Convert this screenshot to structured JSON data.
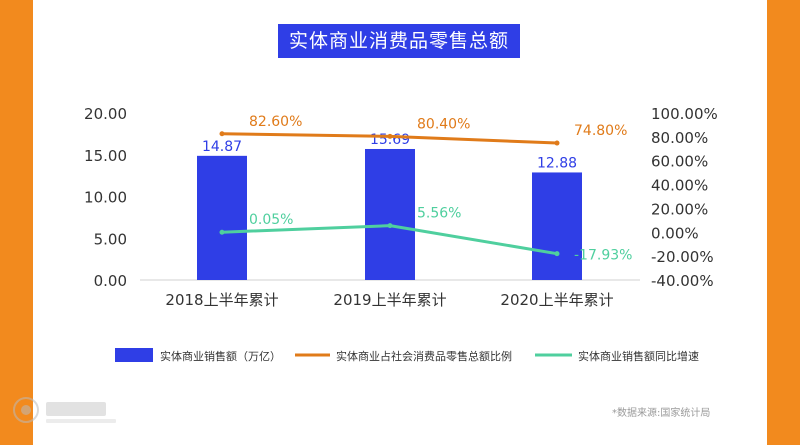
{
  "title": "实体商业消费品零售总额",
  "source_note": "*数据来源:国家统计局",
  "colors": {
    "frame": "#f28a1e",
    "bar": "#2f3ee6",
    "ratio_line": "#e07b1a",
    "growth_line": "#4fcf9e",
    "axis_text": "#333333"
  },
  "chart_data": {
    "type": "bar",
    "categories": [
      "2018上半年累计",
      "2019上半年累计",
      "2020上半年累计"
    ],
    "series": [
      {
        "name": "实体商业销售额（万亿）",
        "kind": "bar",
        "axis": "left",
        "values": [
          14.87,
          15.69,
          12.88
        ],
        "labels": [
          "14.87",
          "15.69",
          "12.88"
        ]
      },
      {
        "name": "实体商业占社会消费品零售总额比例",
        "kind": "line",
        "axis": "right",
        "values": [
          82.6,
          80.4,
          74.8
        ],
        "labels": [
          "82.60%",
          "80.40%",
          "74.80%"
        ]
      },
      {
        "name": "实体商业销售额同比增速",
        "kind": "line",
        "axis": "right",
        "values": [
          0.05,
          5.56,
          -17.93
        ],
        "labels": [
          "0.05%",
          "5.56%",
          "-17.93%"
        ]
      }
    ],
    "y_left": {
      "ylim": [
        0,
        20
      ],
      "ticks": [
        "0.00",
        "5.00",
        "10.00",
        "15.00",
        "20.00"
      ]
    },
    "y_right": {
      "ylim": [
        -40,
        100
      ],
      "ticks": [
        "-40.00%",
        "-20.00%",
        "0.00%",
        "20.00%",
        "40.00%",
        "60.00%",
        "80.00%",
        "100.00%"
      ]
    },
    "legend_position": "bottom",
    "grid": false
  }
}
